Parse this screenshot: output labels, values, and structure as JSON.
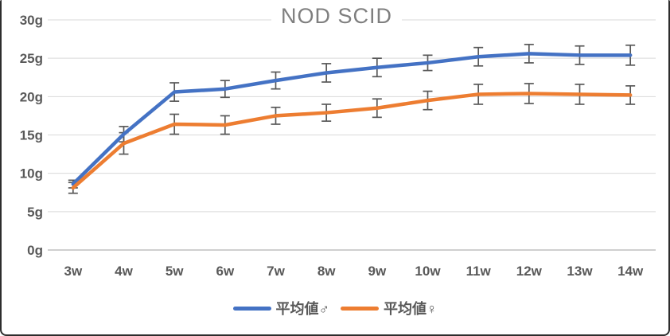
{
  "window": {
    "background_color": "#ffffff",
    "border_color": "#2d2d2d"
  },
  "chart_data": {
    "type": "line",
    "title": "NOD SCID",
    "title_color": "#7f7f7f",
    "categories": [
      "3w",
      "4w",
      "5w",
      "6w",
      "7w",
      "8w",
      "9w",
      "10w",
      "11w",
      "12w",
      "13w",
      "14w"
    ],
    "xlabel": "",
    "ylabel": "",
    "ylim": [
      0,
      30
    ],
    "y_tick_values": [
      0,
      5,
      10,
      15,
      20,
      25,
      30
    ],
    "y_tick_labels": [
      "0g",
      "5g",
      "10g",
      "15g",
      "20g",
      "25g",
      "30g"
    ],
    "grid": true,
    "gridline_color": "#d9d9d9",
    "axis_line_color": "#bfbfbf",
    "tick_label_color": "#595959",
    "error_bar_color": "#595959",
    "legend_position": "bottom",
    "series": [
      {
        "name": "平均値♂",
        "color": "#4472C4",
        "values": [
          8.6,
          15.1,
          20.6,
          21.0,
          22.1,
          23.1,
          23.8,
          24.4,
          25.2,
          25.6,
          25.4,
          25.4
        ],
        "error_bars": [
          0.5,
          1.0,
          1.2,
          1.1,
          1.1,
          1.2,
          1.2,
          1.0,
          1.2,
          1.2,
          1.2,
          1.3
        ]
      },
      {
        "name": "平均値♀",
        "color": "#ED7D31",
        "values": [
          8.1,
          13.9,
          16.4,
          16.3,
          17.5,
          17.9,
          18.5,
          19.5,
          20.3,
          20.4,
          20.3,
          20.2
        ],
        "error_bars": [
          0.7,
          1.4,
          1.3,
          1.2,
          1.1,
          1.1,
          1.2,
          1.2,
          1.3,
          1.3,
          1.3,
          1.2
        ]
      }
    ]
  }
}
